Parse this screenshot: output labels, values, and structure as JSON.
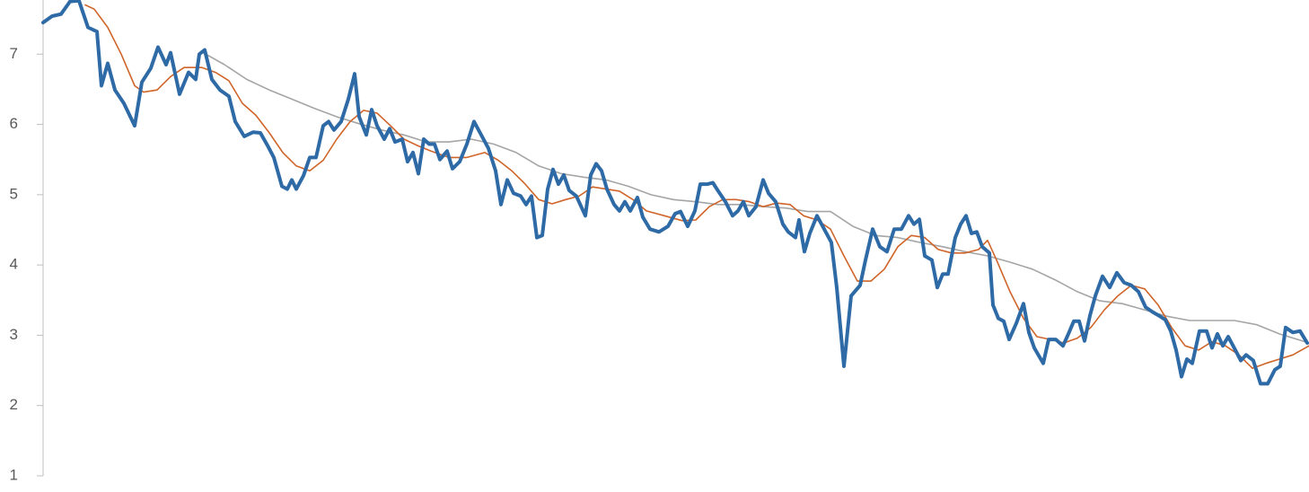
{
  "chart_data": {
    "type": "line",
    "xlim": [
      0,
      1410
    ],
    "ylim": [
      1,
      7.77
    ],
    "yticks": [
      1,
      2,
      3,
      4,
      5,
      6,
      7
    ],
    "grid": false,
    "series": [
      {
        "color": "#2e6aa6",
        "width": 4,
        "x": [
          0,
          10,
          20,
          30,
          40,
          50,
          60,
          65,
          72,
          80,
          90,
          102,
          110,
          120,
          128,
          137,
          142,
          152,
          162,
          170,
          174,
          180,
          188,
          197,
          207,
          214,
          224,
          234,
          242,
          250,
          257,
          266,
          272,
          277,
          282,
          290,
          297,
          304,
          312,
          318,
          324,
          332,
          340,
          347,
          352,
          360,
          366,
          372,
          380,
          386,
          392,
          400,
          406,
          412,
          418,
          424,
          430,
          436,
          442,
          450,
          456,
          464,
          472,
          480,
          488,
          496,
          504,
          510,
          517,
          524,
          532,
          538,
          544,
          550,
          556,
          562,
          568,
          574,
          580,
          586,
          594,
          604,
          610,
          616,
          622,
          628,
          636,
          642,
          648,
          654,
          662,
          668,
          676,
          686,
          696,
          704,
          710,
          718,
          726,
          732,
          740,
          746,
          752,
          760,
          768,
          774,
          780,
          786,
          794,
          802,
          808,
          816,
          824,
          830,
          838,
          842,
          848,
          854,
          862,
          870,
          878,
          884,
          892,
          900,
          910,
          916,
          924,
          932,
          940,
          948,
          956,
          964,
          970,
          976,
          982,
          990,
          996,
          1002,
          1008,
          1016,
          1022,
          1028,
          1034,
          1040,
          1046,
          1054,
          1058,
          1064,
          1070,
          1076,
          1084,
          1092,
          1098,
          1104,
          1114,
          1120,
          1128,
          1136,
          1142,
          1148,
          1154,
          1160,
          1166,
          1172,
          1180,
          1188,
          1196,
          1204,
          1212,
          1220,
          1228,
          1236,
          1244,
          1250,
          1256,
          1262,
          1268,
          1274,
          1280,
          1288,
          1296,
          1302,
          1308,
          1314,
          1320,
          1328,
          1334,
          1340,
          1348,
          1356,
          1364,
          1372,
          1378,
          1384,
          1392,
          1400,
          1408
        ],
        "values": [
          7.45,
          7.54,
          7.57,
          7.75,
          7.76,
          7.38,
          7.32,
          6.55,
          6.87,
          6.49,
          6.3,
          5.98,
          6.6,
          6.8,
          7.1,
          6.85,
          7.02,
          6.43,
          6.74,
          6.64,
          7.0,
          7.06,
          6.64,
          6.49,
          6.4,
          6.04,
          5.83,
          5.89,
          5.88,
          5.7,
          5.53,
          5.12,
          5.08,
          5.21,
          5.08,
          5.27,
          5.53,
          5.53,
          5.98,
          6.04,
          5.92,
          6.04,
          6.36,
          6.72,
          6.11,
          5.85,
          6.21,
          5.98,
          5.79,
          5.94,
          5.75,
          5.79,
          5.47,
          5.6,
          5.3,
          5.79,
          5.72,
          5.72,
          5.5,
          5.62,
          5.37,
          5.47,
          5.72,
          6.04,
          5.85,
          5.66,
          5.34,
          4.86,
          5.21,
          5.02,
          4.98,
          4.86,
          4.98,
          4.39,
          4.42,
          5.08,
          5.36,
          5.15,
          5.28,
          5.06,
          4.98,
          4.7,
          5.28,
          5.44,
          5.34,
          5.08,
          4.86,
          4.77,
          4.9,
          4.77,
          4.96,
          4.68,
          4.51,
          4.47,
          4.55,
          4.73,
          4.76,
          4.55,
          4.77,
          5.15,
          5.15,
          5.17,
          5.05,
          4.9,
          4.7,
          4.77,
          4.9,
          4.7,
          4.83,
          5.21,
          5.02,
          4.9,
          4.58,
          4.47,
          4.39,
          4.64,
          4.19,
          4.45,
          4.7,
          4.51,
          4.32,
          3.68,
          2.56,
          3.56,
          3.71,
          4.07,
          4.51,
          4.26,
          4.19,
          4.51,
          4.51,
          4.7,
          4.58,
          4.65,
          4.13,
          4.07,
          3.68,
          3.87,
          3.87,
          4.39,
          4.58,
          4.7,
          4.45,
          4.47,
          4.26,
          4.17,
          3.43,
          3.24,
          3.2,
          2.94,
          3.17,
          3.45,
          3.04,
          2.82,
          2.6,
          2.94,
          2.94,
          2.85,
          3.02,
          3.2,
          3.2,
          2.92,
          3.28,
          3.56,
          3.84,
          3.68,
          3.89,
          3.75,
          3.71,
          3.62,
          3.4,
          3.33,
          3.27,
          3.22,
          3.06,
          2.79,
          2.41,
          2.66,
          2.6,
          3.06,
          3.06,
          2.82,
          3.02,
          2.85,
          2.98,
          2.79,
          2.64,
          2.72,
          2.64,
          2.31,
          2.31,
          2.51,
          2.56,
          3.11,
          3.04,
          3.06,
          2.89
        ]
      },
      {
        "color": "#d0652a",
        "width": 1.6,
        "x": [
          47,
          57,
          72,
          87,
          102,
          112,
          127,
          142,
          157,
          177,
          192,
          207,
          222,
          237,
          252,
          267,
          282,
          297,
          312,
          327,
          342,
          357,
          372,
          387,
          402,
          417,
          432,
          452,
          472,
          492,
          507,
          522,
          537,
          552,
          567,
          582,
          597,
          612,
          627,
          642,
          657,
          672,
          692,
          712,
          727,
          742,
          757,
          772,
          787,
          802,
          817,
          832,
          847,
          862,
          877,
          892,
          907,
          922,
          937,
          952,
          967,
          982,
          997,
          1012,
          1027,
          1042,
          1052,
          1062,
          1077,
          1092,
          1107,
          1122,
          1137,
          1152,
          1167,
          1182,
          1197,
          1212,
          1227,
          1242,
          1257,
          1272,
          1287,
          1302,
          1317,
          1332,
          1347,
          1362,
          1377,
          1392,
          1410
        ],
        "values": [
          7.7,
          7.64,
          7.38,
          7.0,
          6.55,
          6.46,
          6.49,
          6.68,
          6.81,
          6.81,
          6.74,
          6.62,
          6.3,
          6.13,
          5.88,
          5.6,
          5.41,
          5.34,
          5.49,
          5.79,
          6.04,
          6.2,
          6.16,
          5.98,
          5.79,
          5.7,
          5.62,
          5.53,
          5.53,
          5.6,
          5.49,
          5.34,
          5.15,
          4.93,
          4.87,
          4.93,
          4.98,
          5.11,
          5.08,
          5.05,
          4.93,
          4.77,
          4.7,
          4.63,
          4.64,
          4.83,
          4.93,
          4.93,
          4.9,
          4.83,
          4.88,
          4.86,
          4.7,
          4.64,
          4.51,
          4.13,
          3.77,
          3.77,
          3.94,
          4.26,
          4.42,
          4.39,
          4.22,
          4.17,
          4.17,
          4.22,
          4.35,
          4.07,
          3.62,
          3.24,
          2.98,
          2.94,
          2.89,
          2.96,
          3.11,
          3.36,
          3.56,
          3.71,
          3.66,
          3.43,
          3.11,
          2.85,
          2.79,
          2.91,
          2.85,
          2.72,
          2.53,
          2.6,
          2.66,
          2.72,
          2.85
        ]
      },
      {
        "color": "#a5a5a5",
        "width": 1.6,
        "x": [
          177,
          202,
          227,
          252,
          277,
          302,
          327,
          352,
          377,
          402,
          427,
          452,
          477,
          502,
          527,
          552,
          577,
          602,
          627,
          652,
          677,
          702,
          727,
          752,
          777,
          802,
          827,
          852,
          877,
          902,
          927,
          952,
          977,
          1002,
          1027,
          1052,
          1077,
          1102,
          1127,
          1152,
          1177,
          1202,
          1227,
          1252,
          1277,
          1302,
          1327,
          1352,
          1377,
          1410
        ],
        "values": [
          7.03,
          6.85,
          6.64,
          6.49,
          6.36,
          6.23,
          6.11,
          6.01,
          5.92,
          5.85,
          5.75,
          5.75,
          5.79,
          5.72,
          5.6,
          5.41,
          5.3,
          5.25,
          5.21,
          5.12,
          5.0,
          4.93,
          4.9,
          4.86,
          4.86,
          4.83,
          4.81,
          4.76,
          4.76,
          4.55,
          4.42,
          4.39,
          4.32,
          4.26,
          4.19,
          4.13,
          4.04,
          3.94,
          3.79,
          3.62,
          3.49,
          3.45,
          3.36,
          3.27,
          3.21,
          3.21,
          3.21,
          3.15,
          3.02,
          2.89
        ]
      }
    ]
  }
}
